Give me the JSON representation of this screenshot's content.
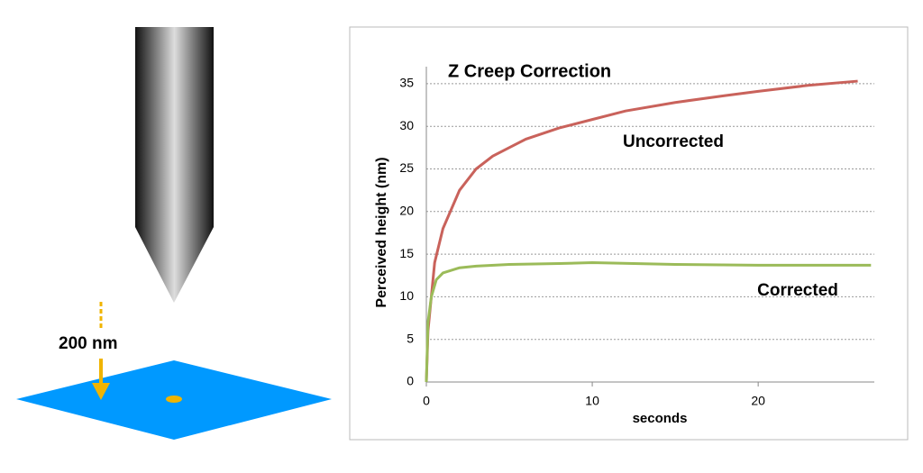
{
  "illustration": {
    "label": "200 nm"
  },
  "chart_data": {
    "type": "line",
    "title": "Z Creep Correction",
    "x_label": "seconds",
    "y_label": "Perceived height (nm)",
    "xlim": [
      0,
      27
    ],
    "ylim": [
      0,
      37
    ],
    "xticks": [
      0,
      10,
      20
    ],
    "yticks": [
      0,
      5,
      10,
      15,
      20,
      25,
      30,
      35
    ],
    "grid": true,
    "series": [
      {
        "name": "Uncorrected",
        "color": "#c9625b",
        "x": [
          0,
          0.1,
          0.5,
          1,
          2,
          3,
          4,
          5,
          6,
          8,
          10,
          12,
          15,
          18,
          20,
          23,
          26
        ],
        "values": [
          0,
          6,
          14,
          18,
          22.5,
          25,
          26.5,
          27.5,
          28.5,
          29.8,
          30.8,
          31.8,
          32.8,
          33.6,
          34.1,
          34.8,
          35.3
        ]
      },
      {
        "name": "Corrected",
        "color": "#9bbb59",
        "x": [
          0,
          0.1,
          0.3,
          0.6,
          1,
          2,
          3,
          5,
          8,
          10,
          15,
          20,
          26.8
        ],
        "values": [
          0,
          7,
          10,
          12,
          12.8,
          13.4,
          13.6,
          13.8,
          13.9,
          14,
          13.8,
          13.7,
          13.7
        ]
      }
    ]
  }
}
